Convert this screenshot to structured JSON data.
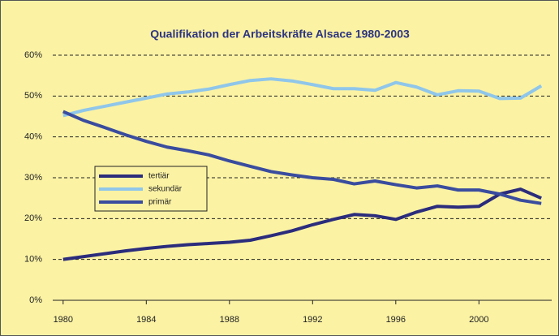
{
  "chart_data": {
    "type": "line",
    "title": "Qualifikation der Arbeitskräfte Alsace 1980-2003",
    "x": [
      1980,
      1981,
      1982,
      1983,
      1984,
      1985,
      1986,
      1987,
      1988,
      1989,
      1990,
      1991,
      1992,
      1993,
      1994,
      1995,
      1996,
      1997,
      1998,
      1999,
      2000,
      2001,
      2002,
      2003
    ],
    "series": [
      {
        "name": "tertiär",
        "color": "#2b2c7c",
        "values": [
          10,
          10.7,
          11.4,
          12.1,
          12.7,
          13.2,
          13.6,
          13.9,
          14.2,
          14.7,
          15.8,
          17,
          18.5,
          19.8,
          21,
          20.7,
          19.8,
          21.6,
          23,
          22.8,
          23,
          26,
          27.2,
          25
        ]
      },
      {
        "name": "sekundär",
        "color": "#8fc6ea",
        "values": [
          45.2,
          46.5,
          47.5,
          48.5,
          49.5,
          50.5,
          51,
          51.7,
          52.8,
          53.8,
          54.2,
          53.7,
          52.8,
          51.8,
          51.8,
          51.4,
          53.3,
          52.2,
          50.3,
          51.3,
          51.2,
          49.4,
          49.5,
          52.5
        ]
      },
      {
        "name": "primär",
        "color": "#3a4c9e",
        "values": [
          46.2,
          44,
          42.3,
          40.5,
          38.9,
          37.5,
          36.6,
          35.6,
          34.1,
          32.8,
          31.5,
          30.7,
          30,
          29.6,
          28.5,
          29.2,
          28.3,
          27.5,
          28,
          27,
          27,
          26,
          24.5,
          23.7
        ]
      }
    ],
    "xlim": [
      1979.5,
      2003.5
    ],
    "xticks": [
      1980,
      1984,
      1988,
      1992,
      1996,
      2000
    ],
    "ylim": [
      0,
      60
    ],
    "yticks": [
      {
        "value": 0,
        "label": "0%"
      },
      {
        "value": 10,
        "label": "10%"
      },
      {
        "value": 20,
        "label": "20%"
      },
      {
        "value": 30,
        "label": "30%"
      },
      {
        "value": 40,
        "label": "40%"
      },
      {
        "value": 50,
        "label": "50%"
      },
      {
        "value": 60,
        "label": "60%"
      }
    ],
    "grid": true,
    "background": "#fbf2a4"
  }
}
